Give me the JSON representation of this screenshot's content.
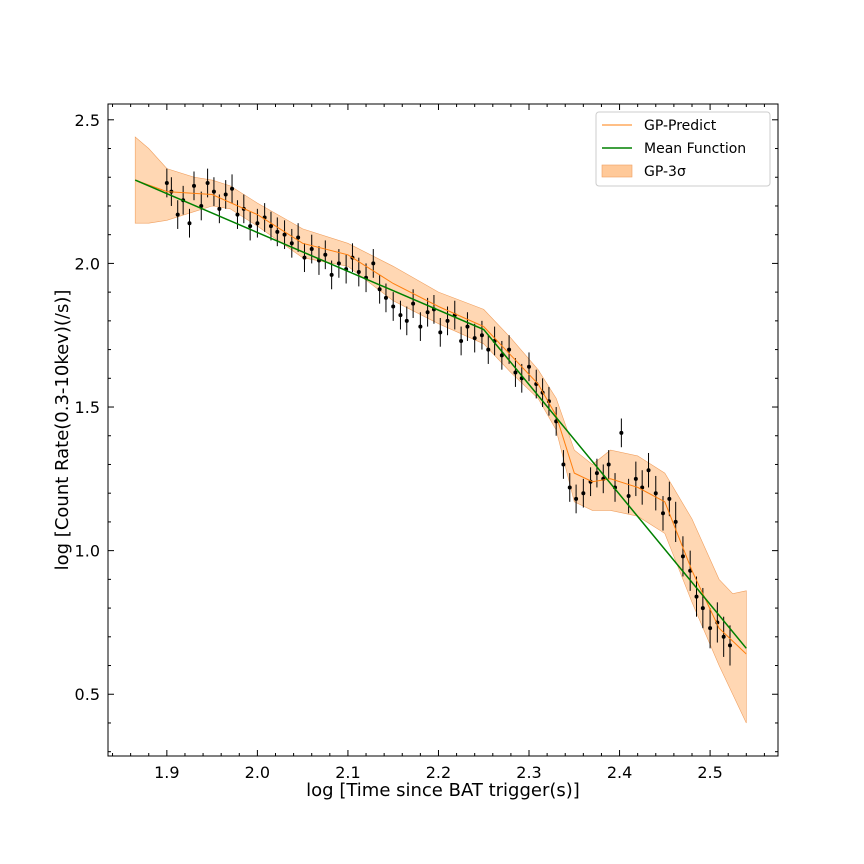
{
  "chart_data": {
    "type": "scatter",
    "title": "",
    "xlabel": "log [Time since BAT trigger(s)]",
    "ylabel": "log [Count Rate(0.3-10kev)(/s)]",
    "xlim": [
      1.835,
      2.575
    ],
    "ylim": [
      0.285,
      2.555
    ],
    "xticks": [
      "1.9",
      "2.0",
      "2.1",
      "2.2",
      "2.3",
      "2.4",
      "2.5"
    ],
    "yticks": [
      "0.5",
      "1.0",
      "1.5",
      "2.0",
      "2.5"
    ],
    "grid": false,
    "legend_position": "top-right",
    "legend": [
      {
        "label": "GP-Predict",
        "kind": "line",
        "color": "#ff7f0e"
      },
      {
        "label": "Mean Function",
        "kind": "line",
        "color": "#008000"
      },
      {
        "label": "GP-3σ",
        "kind": "band",
        "color": "#ffc999"
      }
    ],
    "mean_function": {
      "name": "Mean Function",
      "color": "#008000",
      "x": [
        1.865,
        2.25,
        2.54
      ],
      "y": [
        2.29,
        1.77,
        0.66
      ]
    },
    "gp_predict": {
      "name": "GP-Predict",
      "color": "#ff7f0e",
      "x": [
        1.865,
        1.9,
        1.95,
        2.0,
        2.05,
        2.1,
        2.15,
        2.2,
        2.25,
        2.28,
        2.31,
        2.33,
        2.35,
        2.37,
        2.39,
        2.42,
        2.45,
        2.48,
        2.51,
        2.54
      ],
      "y": [
        2.29,
        2.25,
        2.24,
        2.17,
        2.07,
        2.03,
        1.93,
        1.85,
        1.78,
        1.68,
        1.58,
        1.47,
        1.27,
        1.24,
        1.25,
        1.22,
        1.17,
        0.93,
        0.73,
        0.64
      ]
    },
    "gp_3sigma": {
      "name": "GP-3σ",
      "color": "#ffc999",
      "x": [
        1.865,
        1.88,
        1.9,
        1.93,
        1.95,
        1.97,
        2.0,
        2.05,
        2.1,
        2.15,
        2.2,
        2.25,
        2.28,
        2.31,
        2.33,
        2.35,
        2.37,
        2.39,
        2.42,
        2.45,
        2.48,
        2.51,
        2.525,
        2.54
      ],
      "upper": [
        2.44,
        2.4,
        2.33,
        2.3,
        2.29,
        2.27,
        2.21,
        2.12,
        2.07,
        1.99,
        1.9,
        1.84,
        1.74,
        1.63,
        1.53,
        1.35,
        1.3,
        1.35,
        1.33,
        1.27,
        1.11,
        0.9,
        0.85,
        0.86
      ],
      "lower": [
        2.14,
        2.14,
        2.15,
        2.18,
        2.2,
        2.19,
        2.13,
        2.02,
        1.99,
        1.87,
        1.79,
        1.72,
        1.62,
        1.53,
        1.42,
        1.17,
        1.14,
        1.14,
        1.12,
        1.06,
        0.82,
        0.6,
        0.5,
        0.4
      ]
    },
    "observations": {
      "name": "data",
      "x": [
        1.9,
        1.905,
        1.912,
        1.918,
        1.925,
        1.93,
        1.938,
        1.945,
        1.952,
        1.958,
        1.965,
        1.972,
        1.978,
        1.985,
        1.992,
        2.0,
        2.008,
        2.015,
        2.022,
        2.03,
        2.038,
        2.045,
        2.052,
        2.06,
        2.068,
        2.075,
        2.082,
        2.09,
        2.098,
        2.105,
        2.112,
        2.12,
        2.128,
        2.135,
        2.142,
        2.15,
        2.158,
        2.165,
        2.172,
        2.18,
        2.188,
        2.195,
        2.202,
        2.21,
        2.218,
        2.225,
        2.232,
        2.24,
        2.248,
        2.255,
        2.262,
        2.27,
        2.278,
        2.285,
        2.292,
        2.3,
        2.308,
        2.315,
        2.322,
        2.33,
        2.338,
        2.345,
        2.352,
        2.36,
        2.368,
        2.375,
        2.382,
        2.388,
        2.395,
        2.402,
        2.41,
        2.418,
        2.425,
        2.432,
        2.44,
        2.448,
        2.455,
        2.462,
        2.47,
        2.478,
        2.485,
        2.492,
        2.5,
        2.508,
        2.515,
        2.522
      ],
      "y": [
        2.28,
        2.25,
        2.17,
        2.22,
        2.14,
        2.27,
        2.2,
        2.28,
        2.25,
        2.19,
        2.24,
        2.26,
        2.17,
        2.19,
        2.13,
        2.14,
        2.16,
        2.13,
        2.11,
        2.1,
        2.07,
        2.09,
        2.02,
        2.05,
        2.01,
        2.03,
        1.96,
        2.0,
        1.98,
        2.02,
        1.97,
        1.95,
        2.0,
        1.91,
        1.88,
        1.85,
        1.82,
        1.8,
        1.86,
        1.78,
        1.83,
        1.84,
        1.76,
        1.8,
        1.82,
        1.73,
        1.78,
        1.74,
        1.75,
        1.7,
        1.73,
        1.68,
        1.7,
        1.62,
        1.6,
        1.64,
        1.58,
        1.55,
        1.52,
        1.45,
        1.3,
        1.22,
        1.18,
        1.2,
        1.24,
        1.27,
        1.25,
        1.3,
        1.22,
        1.41,
        1.19,
        1.25,
        1.22,
        1.28,
        1.2,
        1.13,
        1.18,
        1.1,
        0.98,
        0.93,
        0.84,
        0.8,
        0.73,
        0.75,
        0.7,
        0.67
      ],
      "err": [
        0.05,
        0.05,
        0.05,
        0.05,
        0.05,
        0.05,
        0.05,
        0.05,
        0.05,
        0.05,
        0.05,
        0.05,
        0.05,
        0.05,
        0.05,
        0.05,
        0.05,
        0.05,
        0.05,
        0.05,
        0.05,
        0.05,
        0.05,
        0.05,
        0.05,
        0.05,
        0.05,
        0.05,
        0.05,
        0.05,
        0.05,
        0.05,
        0.05,
        0.05,
        0.05,
        0.05,
        0.05,
        0.05,
        0.05,
        0.05,
        0.05,
        0.05,
        0.05,
        0.05,
        0.05,
        0.05,
        0.05,
        0.05,
        0.05,
        0.05,
        0.05,
        0.05,
        0.05,
        0.05,
        0.05,
        0.05,
        0.05,
        0.05,
        0.05,
        0.05,
        0.05,
        0.05,
        0.05,
        0.05,
        0.05,
        0.05,
        0.05,
        0.05,
        0.05,
        0.05,
        0.06,
        0.06,
        0.06,
        0.06,
        0.06,
        0.06,
        0.06,
        0.07,
        0.07,
        0.07,
        0.07,
        0.07,
        0.07,
        0.07,
        0.07,
        0.07
      ]
    }
  }
}
